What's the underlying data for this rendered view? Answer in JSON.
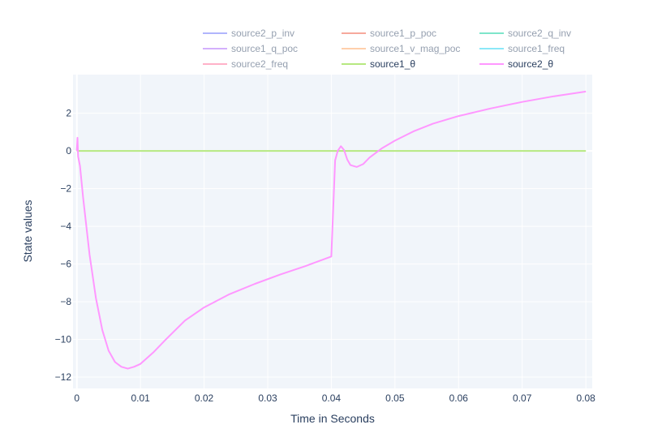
{
  "chart_data": {
    "type": "line",
    "title": "",
    "xlabel": "Time in Seconds",
    "ylabel": "State values",
    "xlim": [
      -0.0006,
      0.081
    ],
    "ylim": [
      -12.6,
      4.05
    ],
    "xticks": [
      0,
      0.01,
      0.02,
      0.03,
      0.04,
      0.05,
      0.06,
      0.07,
      0.08
    ],
    "xtick_labels": [
      "0",
      "0.01",
      "0.02",
      "0.03",
      "0.04",
      "0.05",
      "0.06",
      "0.07",
      "0.08"
    ],
    "yticks": [
      2,
      0,
      -2,
      -4,
      -6,
      -8,
      -10,
      -12
    ],
    "ytick_labels": [
      "2",
      "0",
      "−2",
      "−4",
      "−6",
      "−8",
      "−10",
      "−12"
    ],
    "grid": true,
    "legend_position": "top",
    "series": [
      {
        "name": "source2_p_inv",
        "color": "#636efa",
        "visible": false
      },
      {
        "name": "source1_p_poc",
        "color": "#ef553b",
        "visible": false
      },
      {
        "name": "source2_q_inv",
        "color": "#00cc96",
        "visible": false
      },
      {
        "name": "source1_q_poc",
        "color": "#ab63fa",
        "visible": false
      },
      {
        "name": "source1_v_mag_poc",
        "color": "#ffa15a",
        "visible": false
      },
      {
        "name": "source1_freq",
        "color": "#19d3f3",
        "visible": false
      },
      {
        "name": "source2_freq",
        "color": "#ff6692",
        "visible": false
      },
      {
        "name": "source1_θ",
        "color": "#b6e880",
        "visible": true,
        "x": [
          0,
          0.08
        ],
        "y": [
          0,
          0
        ]
      },
      {
        "name": "source2_θ",
        "color": "#ff97ff",
        "visible": true,
        "x": [
          0,
          0.0001,
          0.0002,
          0.0005,
          0.001,
          0.002,
          0.003,
          0.004,
          0.005,
          0.006,
          0.007,
          0.008,
          0.009,
          0.01,
          0.012,
          0.014,
          0.017,
          0.02,
          0.024,
          0.028,
          0.032,
          0.036,
          0.04,
          0.0403,
          0.0406,
          0.041,
          0.0415,
          0.042,
          0.0425,
          0.043,
          0.044,
          0.045,
          0.046,
          0.048,
          0.05,
          0.053,
          0.056,
          0.06,
          0.065,
          0.07,
          0.075,
          0.08
        ],
        "y": [
          0,
          0.7,
          -0.3,
          -0.8,
          -2.5,
          -5.5,
          -7.8,
          -9.5,
          -10.6,
          -11.2,
          -11.45,
          -11.55,
          -11.45,
          -11.3,
          -10.7,
          -10.0,
          -9.0,
          -8.3,
          -7.6,
          -7.05,
          -6.55,
          -6.1,
          -5.6,
          -3.0,
          -0.5,
          0.0,
          0.25,
          0.05,
          -0.45,
          -0.75,
          -0.85,
          -0.7,
          -0.35,
          0.15,
          0.55,
          1.05,
          1.45,
          1.85,
          2.25,
          2.6,
          2.9,
          3.15
        ]
      }
    ]
  }
}
